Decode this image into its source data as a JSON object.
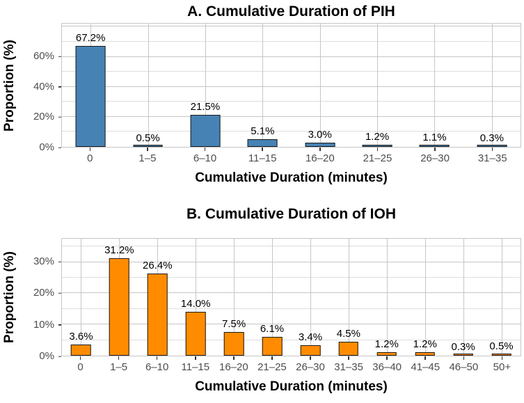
{
  "chart_data": [
    {
      "type": "bar",
      "title": "A. Cumulative Duration of PIH",
      "xlabel": "Cumulative Duration (minutes)",
      "ylabel": "Proportion (%)",
      "categories": [
        "0",
        "1–5",
        "6–10",
        "11–15",
        "16–20",
        "21–25",
        "26–30",
        "31–35"
      ],
      "values": [
        67.2,
        0.5,
        21.5,
        5.1,
        3.0,
        1.2,
        1.1,
        0.3
      ],
      "value_labels": [
        "67.2%",
        "0.5%",
        "21.5%",
        "5.1%",
        "3.0%",
        "1.2%",
        "1.1%",
        "0.3%"
      ],
      "yticks": [
        {
          "v": 0,
          "label": "0%"
        },
        {
          "v": 20,
          "label": "20%"
        },
        {
          "v": 40,
          "label": "40%"
        },
        {
          "v": 60,
          "label": "60%"
        }
      ],
      "ylim": [
        0,
        82
      ],
      "grid": {
        "minor_step": 10,
        "major_step": 20,
        "on": true
      },
      "bar_color": "#4682B4",
      "bar_border_color": "#1A1A1A",
      "legend": "none"
    },
    {
      "type": "bar",
      "title": "B. Cumulative Duration of IOH",
      "xlabel": "Cumulative Duration (minutes)",
      "ylabel": "Proportion (%)",
      "categories": [
        "0",
        "1–5",
        "6–10",
        "11–15",
        "16–20",
        "21–25",
        "26–30",
        "31–35",
        "36–40",
        "41–45",
        "46–50",
        "50+"
      ],
      "values": [
        3.6,
        31.2,
        26.4,
        14.0,
        7.5,
        6.1,
        3.4,
        4.5,
        1.2,
        1.2,
        0.3,
        0.5
      ],
      "value_labels": [
        "3.6%",
        "31.2%",
        "26.4%",
        "14.0%",
        "7.5%",
        "6.1%",
        "3.4%",
        "4.5%",
        "1.2%",
        "1.2%",
        "0.3%",
        "0.5%"
      ],
      "yticks": [
        {
          "v": 0,
          "label": "0%"
        },
        {
          "v": 10,
          "label": "10%"
        },
        {
          "v": 20,
          "label": "20%"
        },
        {
          "v": 30,
          "label": "30%"
        }
      ],
      "ylim": [
        0,
        37.5
      ],
      "grid": {
        "minor_step": 5,
        "major_step": 10,
        "on": true
      },
      "bar_color": "#FF8C00",
      "bar_border_color": "#1A1A1A",
      "legend": "none"
    }
  ]
}
